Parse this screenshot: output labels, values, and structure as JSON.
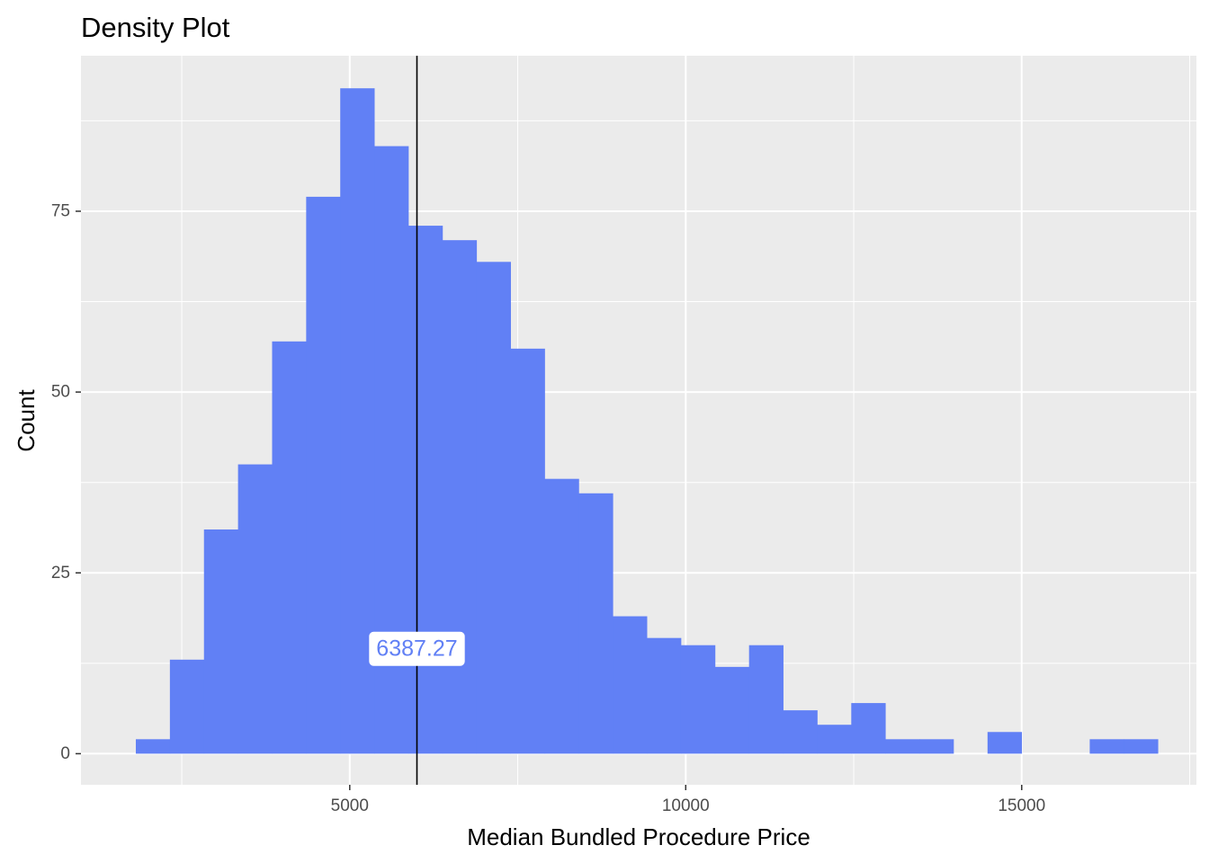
{
  "chart_data": {
    "type": "bar",
    "title": "Density Plot",
    "xlabel": "Median Bundled Procedure Price",
    "ylabel": "Count",
    "xlim": [
      1000,
      17600
    ],
    "ylim": [
      -4.3,
      96.5
    ],
    "x_ticks": [
      5000,
      10000,
      15000
    ],
    "y_ticks": [
      0,
      25,
      50,
      75
    ],
    "bin_width": 507,
    "bins": [
      {
        "x": 2070,
        "count": 2
      },
      {
        "x": 2577,
        "count": 13
      },
      {
        "x": 3084,
        "count": 31
      },
      {
        "x": 3591,
        "count": 40
      },
      {
        "x": 4098,
        "count": 57
      },
      {
        "x": 4605,
        "count": 77
      },
      {
        "x": 5112,
        "count": 92
      },
      {
        "x": 5619,
        "count": 84
      },
      {
        "x": 6126,
        "count": 73
      },
      {
        "x": 6633,
        "count": 71
      },
      {
        "x": 7140,
        "count": 68
      },
      {
        "x": 7647,
        "count": 56
      },
      {
        "x": 8154,
        "count": 38
      },
      {
        "x": 8661,
        "count": 36
      },
      {
        "x": 9168,
        "count": 19
      },
      {
        "x": 9675,
        "count": 16
      },
      {
        "x": 10182,
        "count": 15
      },
      {
        "x": 10689,
        "count": 12
      },
      {
        "x": 11196,
        "count": 15
      },
      {
        "x": 11703,
        "count": 6
      },
      {
        "x": 12210,
        "count": 4
      },
      {
        "x": 12717,
        "count": 7
      },
      {
        "x": 13224,
        "count": 2
      },
      {
        "x": 13731,
        "count": 2
      },
      {
        "x": 14238,
        "count": 0
      },
      {
        "x": 14745,
        "count": 3
      },
      {
        "x": 15252,
        "count": 0
      },
      {
        "x": 15759,
        "count": 0
      },
      {
        "x": 16266,
        "count": 2
      },
      {
        "x": 16773,
        "count": 2
      }
    ],
    "vline": {
      "x": 6000
    },
    "annotation": {
      "text": "6387.27",
      "x": 6000,
      "y": 14.5
    },
    "grid": true,
    "colors": {
      "bar": "#6180f5",
      "panel": "#ebebeb",
      "grid": "#ffffff",
      "vline": "#000000",
      "annotation_text": "#6180f5",
      "annotation_bg": "#ffffff"
    }
  }
}
